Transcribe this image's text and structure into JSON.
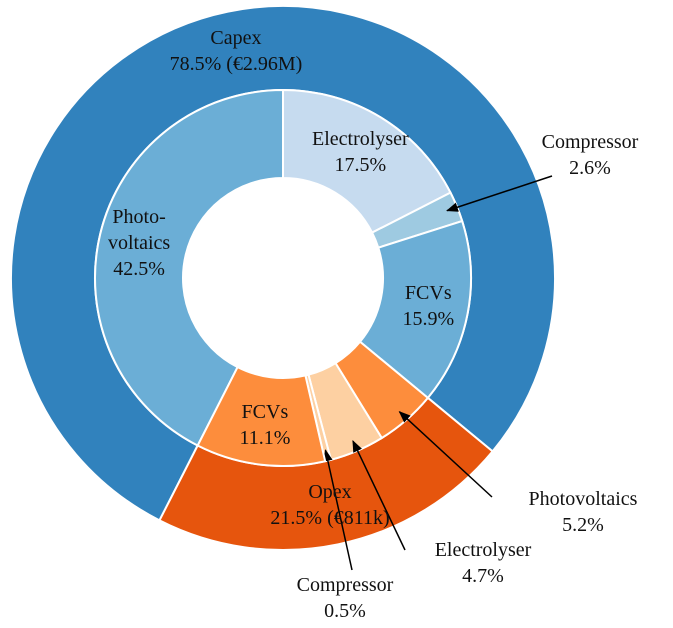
{
  "chart_data": {
    "type": "nested-donut",
    "startangle": 207,
    "counterclock": false,
    "outer": {
      "categories": [
        "Capex",
        "Opex"
      ],
      "values": [
        78.5,
        21.5
      ],
      "value_labels": [
        "78.5% (€2.96M)",
        "21.5% (€811k)"
      ],
      "colors": [
        "#3182bd",
        "#e6550d"
      ]
    },
    "inner": {
      "categories": [
        "Photo-\nvoltaics",
        "Electrolyser",
        "Compressor",
        "FCVs",
        "Photovoltaics",
        "Electrolyser",
        "Compressor",
        "FCVs"
      ],
      "values": [
        42.5,
        17.5,
        2.6,
        15.9,
        5.2,
        4.7,
        0.5,
        11.1
      ],
      "value_labels": [
        "42.5%",
        "17.5%",
        "2.6%",
        "15.9%",
        "5.2%",
        "4.7%",
        "0.5%",
        "11.1%"
      ],
      "colors": [
        "#6baed6",
        "#c6dbef",
        "#9ecae1",
        "#6baed6",
        "#fd8d3c",
        "#fdd0a2",
        "#fdd0a2",
        "#fd8d3c"
      ]
    }
  }
}
